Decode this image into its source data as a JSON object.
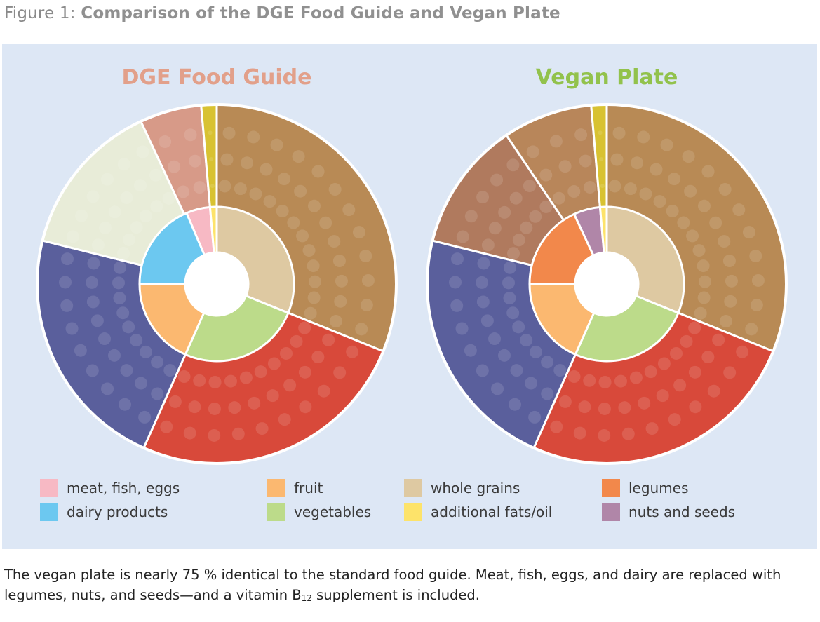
{
  "figure": {
    "prefix": "Figure 1: ",
    "title": "Comparison of the DGE Food Guide and Vegan Plate"
  },
  "plates": [
    {
      "title": "DGE Food Guide",
      "title_color": "#e2a08a",
      "outer_segments": [
        {
          "photo": "whole-grains-photo",
          "start_deg": 0,
          "end_deg": 112
        },
        {
          "photo": "vegetables-photo",
          "start_deg": 112,
          "end_deg": 204
        },
        {
          "photo": "fruit-photo",
          "start_deg": 204,
          "end_deg": 284
        },
        {
          "photo": "dairy-photo",
          "start_deg": 284,
          "end_deg": 335
        },
        {
          "photo": "meat-fish-eggs-photo",
          "start_deg": 335,
          "end_deg": 355
        },
        {
          "photo": "oil-photo",
          "start_deg": 355,
          "end_deg": 360
        }
      ],
      "inner_segments": [
        {
          "category": "whole grains",
          "start_deg": 0,
          "end_deg": 112
        },
        {
          "category": "vegetables",
          "start_deg": 112,
          "end_deg": 204
        },
        {
          "category": "fruit",
          "start_deg": 204,
          "end_deg": 270
        },
        {
          "category": "dairy products",
          "start_deg": 270,
          "end_deg": 337
        },
        {
          "category": "meat, fish, eggs",
          "start_deg": 337,
          "end_deg": 355
        },
        {
          "category": "additional fats/oil",
          "start_deg": 355,
          "end_deg": 360
        }
      ]
    },
    {
      "title": "Vegan Plate",
      "title_color": "#92c24c",
      "outer_segments": [
        {
          "photo": "whole-grains-photo",
          "start_deg": 0,
          "end_deg": 112
        },
        {
          "photo": "vegetables-photo",
          "start_deg": 112,
          "end_deg": 204
        },
        {
          "photo": "fruit-photo",
          "start_deg": 204,
          "end_deg": 284
        },
        {
          "photo": "legumes-photo",
          "start_deg": 284,
          "end_deg": 326
        },
        {
          "photo": "nuts-seeds-photo",
          "start_deg": 326,
          "end_deg": 355
        },
        {
          "photo": "oil-photo",
          "start_deg": 355,
          "end_deg": 360
        }
      ],
      "inner_segments": [
        {
          "category": "whole grains",
          "start_deg": 0,
          "end_deg": 112
        },
        {
          "category": "vegetables",
          "start_deg": 112,
          "end_deg": 204
        },
        {
          "category": "fruit",
          "start_deg": 204,
          "end_deg": 270
        },
        {
          "category": "legumes",
          "start_deg": 270,
          "end_deg": 335
        },
        {
          "category": "nuts and seeds",
          "start_deg": 335,
          "end_deg": 355
        },
        {
          "category": "additional fats/oil",
          "start_deg": 355,
          "end_deg": 360
        }
      ]
    }
  ],
  "categories": {
    "meat, fish, eggs": "#f7b9c4",
    "dairy products": "#6cc8f0",
    "fruit": "#fbb870",
    "vegetables": "#bcdb8a",
    "whole grains": "#dec9a2",
    "additional fats/oil": "#fde36a",
    "legumes": "#f2884b",
    "nuts and seeds": "#b086a8"
  },
  "photo_colors": {
    "whole-grains-photo": "#b88a55",
    "vegetables-photo": "#d8493a",
    "fruit-photo": "#5a5f9c",
    "dairy-photo": "#e8ecd8",
    "meat-fish-eggs-photo": "#d79a88",
    "oil-photo": "#d8c232",
    "legumes-photo": "#b07a5e",
    "nuts-seeds-photo": "#b8865a"
  },
  "legend": [
    {
      "label": "meat, fish, eggs",
      "color": "#f7b9c4"
    },
    {
      "label": "dairy products",
      "color": "#6cc8f0"
    },
    {
      "label": "fruit",
      "color": "#fbb870"
    },
    {
      "label": "vegetables",
      "color": "#bcdb8a"
    },
    {
      "label": "whole grains",
      "color": "#dec9a2"
    },
    {
      "label": "additional fats/oil",
      "color": "#fde36a"
    },
    {
      "label": "legumes",
      "color": "#f2884b"
    },
    {
      "label": "nuts and seeds",
      "color": "#b086a8"
    }
  ],
  "caption": {
    "part1": "The vegan plate is nearly 75 % identical to the standard food guide. Meat, fish, eggs, and dairy are replaced with legumes, nuts, and seeds—and a vitamin B",
    "subscript": "12",
    "part2": " supplement is included."
  }
}
